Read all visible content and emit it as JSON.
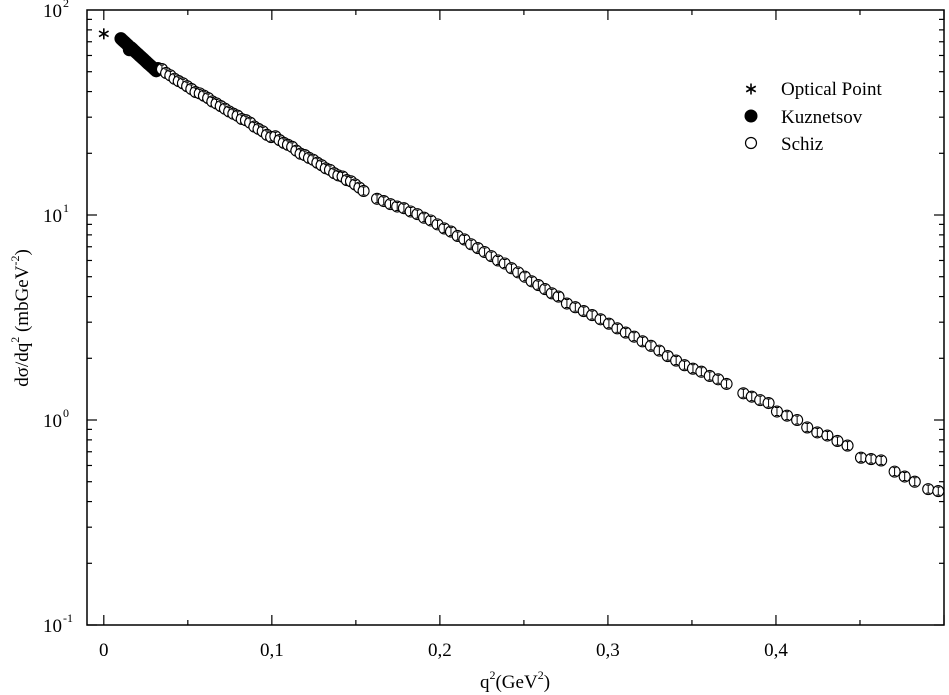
{
  "chart_data": {
    "type": "scatter",
    "title": "",
    "xlabel": {
      "base": "q",
      "sup": "2",
      "mid": "(GeV",
      "sup2": "2",
      "end": ")"
    },
    "ylabel": {
      "a": "dσ/dq",
      "sup1": "2",
      "b": " (mbGeV",
      "sup2": "-2",
      "c": ")"
    },
    "xlim": [
      -0.01,
      0.5
    ],
    "ylim": [
      0.1,
      100
    ],
    "yscale": "log",
    "grid": false,
    "legend_position": "top-right",
    "xticks": [
      {
        "value": 0.0,
        "label": "0"
      },
      {
        "value": 0.1,
        "label": "0,1"
      },
      {
        "value": 0.2,
        "label": "0,2"
      },
      {
        "value": 0.3,
        "label": "0,3"
      },
      {
        "value": 0.4,
        "label": "0,4"
      }
    ],
    "yticks": [
      {
        "value": 0.1,
        "base": "10",
        "exp": "-1"
      },
      {
        "value": 1,
        "base": "10",
        "exp": "0"
      },
      {
        "value": 10,
        "base": "10",
        "exp": "1"
      },
      {
        "value": 100,
        "base": "10",
        "exp": "2"
      }
    ],
    "series": [
      {
        "name": "Optical Point",
        "marker": "star",
        "points": [
          [
            0.0,
            76.5
          ]
        ]
      },
      {
        "name": "Kuznetsov",
        "marker": "filled-circle",
        "points": [
          [
            0.0102,
            72.5
          ],
          [
            0.0112,
            71.2
          ],
          [
            0.0122,
            70.0
          ],
          [
            0.0132,
            68.8
          ],
          [
            0.0142,
            67.6
          ],
          [
            0.0148,
            66.6
          ],
          [
            0.0152,
            64.0
          ],
          [
            0.0162,
            65.5
          ],
          [
            0.0172,
            64.4
          ],
          [
            0.0182,
            63.2
          ],
          [
            0.0192,
            62.1
          ],
          [
            0.0202,
            61.1
          ],
          [
            0.0212,
            60.0
          ],
          [
            0.0222,
            59.0
          ],
          [
            0.0232,
            58.0
          ],
          [
            0.0242,
            57.0
          ],
          [
            0.0252,
            56.0
          ],
          [
            0.0262,
            55.0
          ],
          [
            0.0272,
            54.1
          ],
          [
            0.0282,
            53.2
          ],
          [
            0.0292,
            52.3
          ],
          [
            0.0302,
            51.4
          ],
          [
            0.0312,
            50.5
          ],
          [
            0.0322,
            51.8
          ]
        ]
      },
      {
        "name": "Schiz",
        "marker": "open-circle",
        "points": [
          [
            0.0346,
            51.5
          ],
          [
            0.0371,
            49.3
          ],
          [
            0.0396,
            48.0
          ],
          [
            0.0421,
            46.2
          ],
          [
            0.0446,
            45.0
          ],
          [
            0.0471,
            43.9
          ],
          [
            0.0496,
            42.5
          ],
          [
            0.0521,
            41.2
          ],
          [
            0.0546,
            39.8
          ],
          [
            0.0571,
            39.2
          ],
          [
            0.0596,
            38.2
          ],
          [
            0.0621,
            37.2
          ],
          [
            0.0646,
            35.8
          ],
          [
            0.0671,
            35.0
          ],
          [
            0.0696,
            34.0
          ],
          [
            0.0721,
            33.0
          ],
          [
            0.0746,
            32.0
          ],
          [
            0.0771,
            31.2
          ],
          [
            0.0796,
            30.5
          ],
          [
            0.0821,
            29.4
          ],
          [
            0.0846,
            29.0
          ],
          [
            0.0871,
            28.2
          ],
          [
            0.0896,
            27.0
          ],
          [
            0.0921,
            26.3
          ],
          [
            0.0946,
            25.6
          ],
          [
            0.0971,
            24.6
          ],
          [
            0.0996,
            24.0
          ],
          [
            0.1021,
            24.2
          ],
          [
            0.1046,
            23.2
          ],
          [
            0.1071,
            22.5
          ],
          [
            0.1096,
            22.0
          ],
          [
            0.1121,
            21.5
          ],
          [
            0.1146,
            20.6
          ],
          [
            0.1171,
            19.9
          ],
          [
            0.1196,
            19.6
          ],
          [
            0.1221,
            19.0
          ],
          [
            0.1246,
            18.6
          ],
          [
            0.1271,
            18.0
          ],
          [
            0.1296,
            17.5
          ],
          [
            0.1321,
            16.9
          ],
          [
            0.1346,
            16.6
          ],
          [
            0.1371,
            16.0
          ],
          [
            0.1396,
            15.6
          ],
          [
            0.1421,
            15.4
          ],
          [
            0.1446,
            14.8
          ],
          [
            0.1471,
            14.6
          ],
          [
            0.1496,
            14.1
          ],
          [
            0.1521,
            13.6
          ],
          [
            0.1546,
            13.1
          ],
          [
            0.1626,
            12.0
          ],
          [
            0.1666,
            11.7
          ],
          [
            0.1706,
            11.3
          ],
          [
            0.1746,
            11.0
          ],
          [
            0.1786,
            10.8
          ],
          [
            0.1826,
            10.4
          ],
          [
            0.1866,
            10.1
          ],
          [
            0.1906,
            9.7
          ],
          [
            0.1946,
            9.4
          ],
          [
            0.1986,
            9.0
          ],
          [
            0.2026,
            8.6
          ],
          [
            0.2066,
            8.3
          ],
          [
            0.2106,
            7.9
          ],
          [
            0.2146,
            7.6
          ],
          [
            0.2186,
            7.2
          ],
          [
            0.2226,
            6.9
          ],
          [
            0.2266,
            6.6
          ],
          [
            0.2306,
            6.3
          ],
          [
            0.2346,
            6.0
          ],
          [
            0.2386,
            5.8
          ],
          [
            0.2426,
            5.5
          ],
          [
            0.2466,
            5.25
          ],
          [
            0.2506,
            5.0
          ],
          [
            0.2546,
            4.75
          ],
          [
            0.2586,
            4.55
          ],
          [
            0.2626,
            4.35
          ],
          [
            0.2666,
            4.15
          ],
          [
            0.2706,
            4.0
          ],
          [
            0.2756,
            3.7
          ],
          [
            0.2806,
            3.55
          ],
          [
            0.2856,
            3.4
          ],
          [
            0.2906,
            3.25
          ],
          [
            0.2956,
            3.1
          ],
          [
            0.3006,
            2.95
          ],
          [
            0.3056,
            2.8
          ],
          [
            0.3106,
            2.67
          ],
          [
            0.3156,
            2.55
          ],
          [
            0.3206,
            2.42
          ],
          [
            0.3256,
            2.3
          ],
          [
            0.3306,
            2.18
          ],
          [
            0.3356,
            2.05
          ],
          [
            0.3406,
            1.95
          ],
          [
            0.3456,
            1.85
          ],
          [
            0.3506,
            1.78
          ],
          [
            0.3556,
            1.72
          ],
          [
            0.3606,
            1.64
          ],
          [
            0.3656,
            1.58
          ],
          [
            0.3706,
            1.5
          ],
          [
            0.3806,
            1.35
          ],
          [
            0.3856,
            1.3
          ],
          [
            0.3906,
            1.25
          ],
          [
            0.3956,
            1.21
          ],
          [
            0.4006,
            1.1
          ],
          [
            0.4066,
            1.05
          ],
          [
            0.4126,
            1.0
          ],
          [
            0.4186,
            0.92
          ],
          [
            0.4246,
            0.87
          ],
          [
            0.4306,
            0.84
          ],
          [
            0.4366,
            0.79
          ],
          [
            0.4426,
            0.75
          ],
          [
            0.4506,
            0.655
          ],
          [
            0.4566,
            0.645
          ],
          [
            0.4626,
            0.635
          ],
          [
            0.4706,
            0.56
          ],
          [
            0.4766,
            0.53
          ],
          [
            0.4826,
            0.5
          ],
          [
            0.4906,
            0.46
          ],
          [
            0.4966,
            0.45
          ]
        ]
      }
    ]
  }
}
